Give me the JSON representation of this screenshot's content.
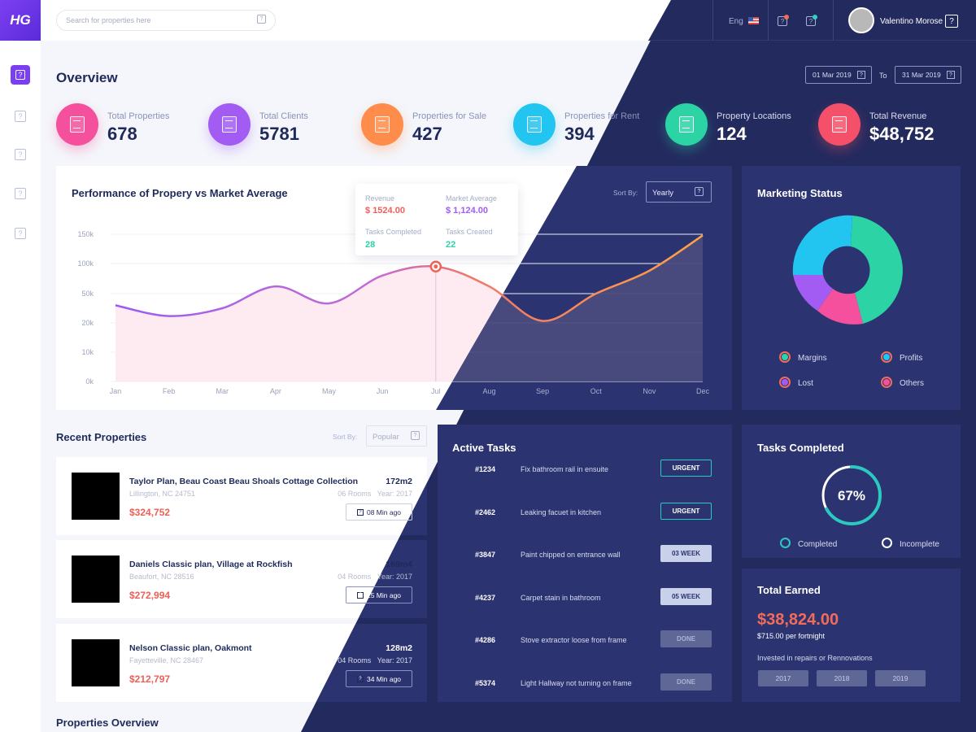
{
  "app": {
    "logo_text": "HG"
  },
  "search": {
    "placeholder": "Search for properties here"
  },
  "topbar": {
    "language": "Eng",
    "user_name": "Valentino Morose"
  },
  "overview": {
    "title": "Overview",
    "date_from": "01 Mar 2019",
    "date_to_label": "To",
    "date_to": "31 Mar 2019"
  },
  "stats": [
    {
      "label": "Total Properties",
      "value": "678",
      "color": "#f5509d"
    },
    {
      "label": "Total Clients",
      "value": "5781",
      "color": "#a25cf3"
    },
    {
      "label": "Properties for Sale",
      "value": "427",
      "color": "#ff8c4a"
    },
    {
      "label": "Properties for Rent",
      "value": "394",
      "color": "#22c4f0"
    },
    {
      "label": "Property Locations",
      "value": "124",
      "color": "#2cd3a4"
    },
    {
      "label": "Total Revenue",
      "value": "$48,752",
      "color": "#f5506a"
    }
  ],
  "performance": {
    "title": "Performance of Propery vs Market Average",
    "sort_label": "Sort By:",
    "sort_value": "Yearly",
    "tooltip": {
      "revenue_label": "Revenue",
      "revenue_value": "$ 1524.00",
      "market_label": "Market Average",
      "market_value": "$ 1,124.00",
      "tasks_completed_label": "Tasks Completed",
      "tasks_completed_value": "28",
      "tasks_created_label": "Tasks Created",
      "tasks_created_value": "22"
    }
  },
  "chart_data": {
    "type": "area",
    "title": "Performance of Propery vs Market Average",
    "categories": [
      "Jan",
      "Feb",
      "Mar",
      "Apr",
      "May",
      "Jun",
      "Jul",
      "Aug",
      "Sep",
      "Oct",
      "Nov",
      "Dec"
    ],
    "y_ticks": [
      "0k",
      "10k",
      "20k",
      "50k",
      "100k",
      "150k"
    ],
    "series": [
      {
        "values": [
          38,
          27,
          35,
          62,
          40,
          80,
          95,
          62,
          22,
          50,
          88,
          148
        ]
      }
    ],
    "highlight": {
      "category": "Jul"
    },
    "grid": true
  },
  "marketing": {
    "title": "Marketing  Status",
    "legend": [
      {
        "label": "Margins",
        "color": "#2cd3a4"
      },
      {
        "label": "Profits",
        "color": "#22c4f0"
      },
      {
        "label": "Lost",
        "color": "#a25cf3"
      },
      {
        "label": "Others",
        "color": "#f5509d"
      }
    ]
  },
  "recent": {
    "title": "Recent Properties",
    "sort_label": "Sort By:",
    "sort_value": "Popular",
    "items": [
      {
        "name": "Taylor Plan, Beau Coast Beau Shoals Cottage Collection",
        "location": "Lillington, NC 24751",
        "price": "$324,752",
        "size": "172m2",
        "rooms": "06 Rooms",
        "year": "Year:  2017",
        "time": "08 Min ago"
      },
      {
        "name": "Daniels Classic plan, Village at Rockfish",
        "location": "Beaufort, NC 28516",
        "price": "$272,994",
        "size": "169m4",
        "rooms": "04 Rooms",
        "year": "Year:  2017",
        "time": "15 Min ago"
      },
      {
        "name": "Nelson Classic plan, Oakmont",
        "location": "Fayetteville, NC 28467",
        "price": "$212,797",
        "size": "128m2",
        "rooms": "04 Rooms",
        "year": "Year:  2017",
        "time": "34 Min ago"
      }
    ]
  },
  "tasks": {
    "title": "Active Tasks",
    "items": [
      {
        "id": "#1234",
        "desc": "Fix bathroom rail in ensuite",
        "badge": "URGENT",
        "style": "urgent"
      },
      {
        "id": "#2462",
        "desc": "Leaking facuet in kitchen",
        "badge": "URGENT",
        "style": "urgent"
      },
      {
        "id": "#3847",
        "desc": "Paint chipped on entrance wall",
        "badge": "03 WEEK",
        "style": "week"
      },
      {
        "id": "#4237",
        "desc": "Carpet stain in bathroom",
        "badge": "05 WEEK",
        "style": "week"
      },
      {
        "id": "#4286",
        "desc": "Stove extractor loose from frame",
        "badge": "DONE",
        "style": "done"
      },
      {
        "id": "#5374",
        "desc": "Light Hallway not turning on frame",
        "badge": "DONE",
        "style": "done"
      }
    ]
  },
  "tasks_completed": {
    "title": "Tasks Completed",
    "percent": 67,
    "percent_label": "67%",
    "legend_completed": "Completed",
    "legend_incomplete": "Incomplete"
  },
  "earned": {
    "title": "Total Earned",
    "amount": "$38,824.00",
    "sub": "$715.00 per fortnight",
    "note": "Invested in repairs or Rennovations",
    "years": [
      "2017",
      "2018",
      "2019"
    ]
  },
  "properties_overview": {
    "title": "Properties Overview"
  }
}
